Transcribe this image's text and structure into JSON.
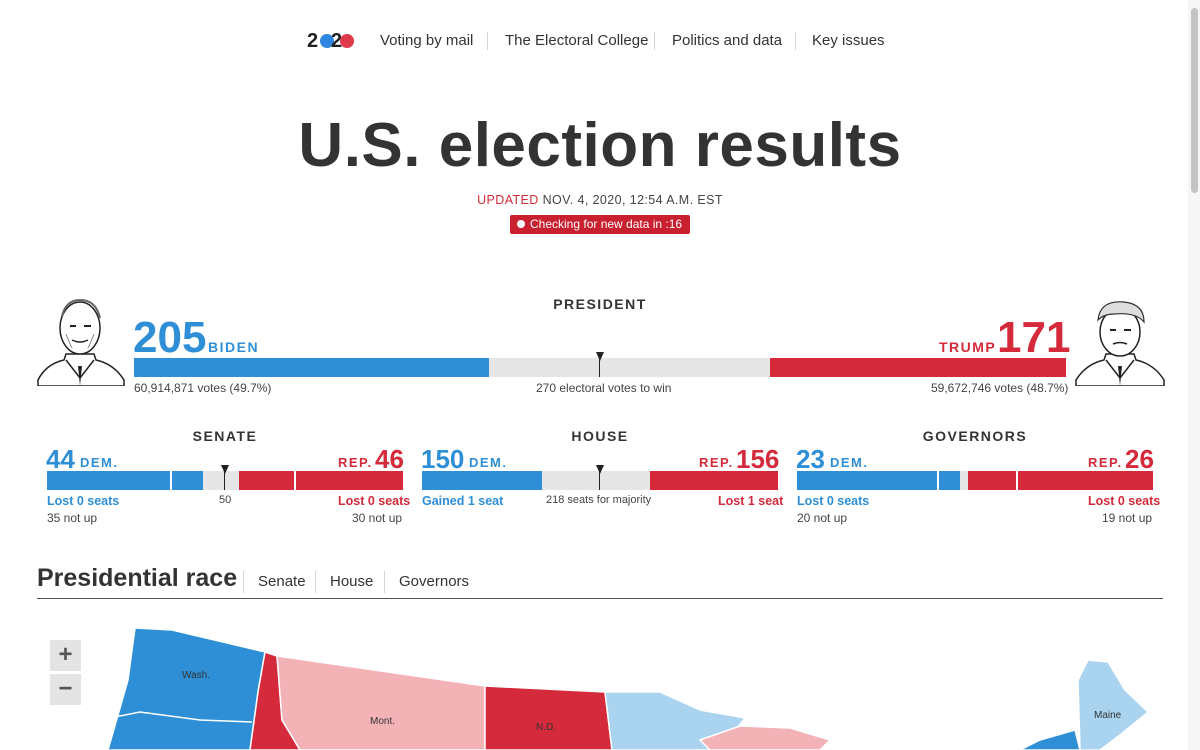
{
  "nav": {
    "logo_left": "2",
    "logo_right": "2",
    "links": [
      "Voting by mail",
      "The Electoral College",
      "Politics and data",
      "Key issues"
    ]
  },
  "header": {
    "title": "U.S. election results",
    "updated_label": "UPDATED",
    "updated_time": "NOV. 4, 2020, 12:54 A.M. EST",
    "checking": "Checking for new data in :16"
  },
  "president": {
    "label": "PRESIDENT",
    "dem": {
      "votes": "205",
      "name": "BIDEN",
      "popular": "60,914,871 votes (49.7%)"
    },
    "rep": {
      "votes": "171",
      "name": "TRUMP",
      "popular": "59,672,746 votes (48.7%)"
    },
    "to_win": "270 electoral votes to win",
    "total": 538,
    "dem_ev": 205,
    "rep_ev": 171
  },
  "senate": {
    "label": "SENATE",
    "dem": {
      "count": "44",
      "party": "DEM.",
      "change": "Lost 0 seats",
      "not_up": "35 not up"
    },
    "rep": {
      "count": "46",
      "party": "REP.",
      "change": "Lost 0 seats",
      "not_up": "30 not up"
    },
    "majority": "50"
  },
  "house": {
    "label": "HOUSE",
    "dem": {
      "count": "150",
      "party": "DEM.",
      "change": "Gained 1 seat"
    },
    "rep": {
      "count": "156",
      "party": "REP.",
      "change": "Lost 1 seat"
    },
    "majority": "218 seats for majority"
  },
  "governors": {
    "label": "GOVERNORS",
    "dem": {
      "count": "23",
      "party": "DEM.",
      "change": "Lost 0 seats",
      "not_up": "20 not up"
    },
    "rep": {
      "count": "26",
      "party": "REP.",
      "change": "Lost 0 seats",
      "not_up": "19 not up"
    }
  },
  "race": {
    "title": "Presidential race",
    "tabs": [
      "Senate",
      "House",
      "Governors"
    ]
  },
  "map": {
    "zoom_in": "+",
    "zoom_out": "−",
    "labels": {
      "wash": "Wash.",
      "mont": "Mont.",
      "nd": "N.D.",
      "maine": "Maine"
    }
  },
  "colors": {
    "dem": "#2e8fd6",
    "rep": "#d42a3b",
    "lean_dem": "#a9d3ef",
    "lean_rep": "#f3b2b6",
    "accent": "#c8202f"
  }
}
